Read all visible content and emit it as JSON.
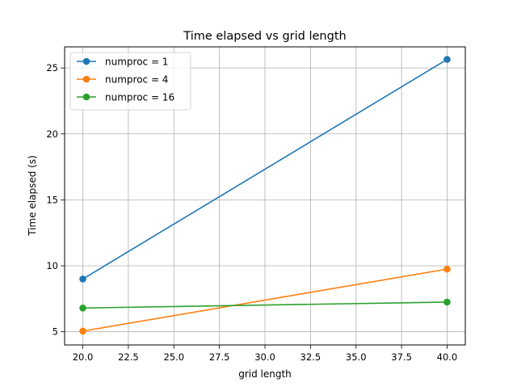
{
  "chart_data": {
    "type": "line",
    "title": "Time elapsed vs grid length",
    "xlabel": "grid length",
    "ylabel": "Time elapsed (s)",
    "xlim": [
      19.0,
      41.0
    ],
    "ylim": [
      4.0,
      26.6
    ],
    "xticks": [
      20.0,
      22.5,
      25.0,
      27.5,
      30.0,
      32.5,
      35.0,
      37.5,
      40.0
    ],
    "xtick_labels": [
      "20.0",
      "22.5",
      "25.0",
      "27.5",
      "30.0",
      "32.5",
      "35.0",
      "37.5",
      "40.0"
    ],
    "yticks": [
      5,
      10,
      15,
      20,
      25
    ],
    "ytick_labels": [
      "5",
      "10",
      "15",
      "20",
      "25"
    ],
    "grid": true,
    "legend_position": "top-left",
    "x": [
      20,
      40
    ],
    "series": [
      {
        "name": "numproc = 1",
        "color": "#1f77b4",
        "values": [
          9.0,
          25.65
        ]
      },
      {
        "name": "numproc = 4",
        "color": "#ff7f0e",
        "values": [
          5.05,
          9.75
        ]
      },
      {
        "name": "numproc = 16",
        "color": "#2ca02c",
        "values": [
          6.8,
          7.25
        ]
      }
    ]
  }
}
